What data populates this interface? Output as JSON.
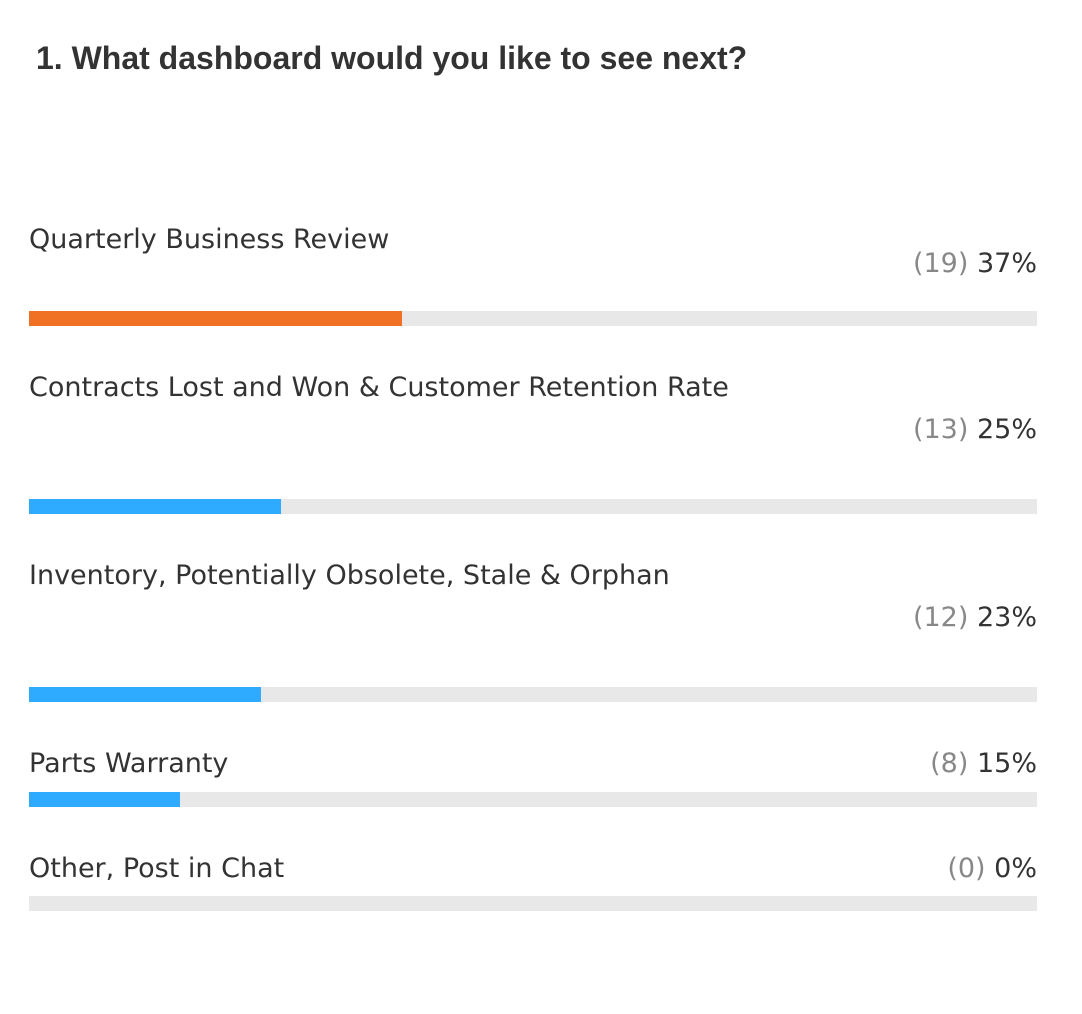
{
  "question": "1. What dashboard would you like to see next?",
  "colors": {
    "leading": "#f07124",
    "other": "#2eaaff",
    "track": "#e8e8e8"
  },
  "options": [
    {
      "label": "Quarterly Business Review",
      "count": "(19)",
      "percent": "37%",
      "fraction": 0.37,
      "leading": true
    },
    {
      "label": "Contracts Lost and Won & Customer Retention Rate",
      "count": "(13)",
      "percent": "25%",
      "fraction": 0.25,
      "leading": false
    },
    {
      "label": "Inventory, Potentially Obsolete, Stale & Orphan",
      "count": "(12)",
      "percent": "23%",
      "fraction": 0.23,
      "leading": false
    },
    {
      "label": "Parts Warranty",
      "count": "(8)",
      "percent": "15%",
      "fraction": 0.15,
      "leading": false
    },
    {
      "label": "Other, Post in Chat",
      "count": "(0)",
      "percent": "0%",
      "fraction": 0,
      "leading": false
    }
  ]
}
